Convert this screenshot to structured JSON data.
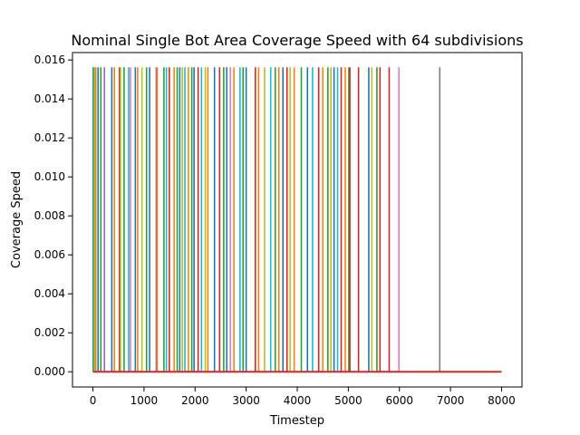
{
  "chart_data": {
    "type": "line",
    "title": "Nominal Single Bot Area Coverage Speed with 64 subdivisions",
    "xlabel": "Timestep",
    "ylabel": "Coverage Speed",
    "xlim": [
      -400,
      8400
    ],
    "ylim": [
      -0.00078,
      0.01638
    ],
    "x_ticks": [
      0,
      1000,
      2000,
      3000,
      4000,
      5000,
      6000,
      7000,
      8000
    ],
    "y_ticks": [
      0.0,
      0.002,
      0.004,
      0.006,
      0.008,
      0.01,
      0.012,
      0.014,
      0.016
    ],
    "x_tick_labels": [
      "0",
      "1000",
      "2000",
      "3000",
      "4000",
      "5000",
      "6000",
      "7000",
      "8000"
    ],
    "y_tick_labels": [
      "0.000",
      "0.002",
      "0.004",
      "0.006",
      "0.008",
      "0.010",
      "0.012",
      "0.014",
      "0.016"
    ],
    "baseline": {
      "from": 0,
      "to": 8000,
      "value": 0,
      "color": "#d62728"
    },
    "spike_height": 0.015625,
    "grid": false,
    "legend": "none",
    "palette": [
      "#1f77b4",
      "#ff7f0e",
      "#2ca02c",
      "#d62728",
      "#9467bd",
      "#8c564b",
      "#e377c2",
      "#7f7f7f",
      "#bcbd22",
      "#17becf"
    ],
    "spikes": [
      5,
      20,
      35,
      55,
      100,
      155,
      225,
      370,
      420,
      520,
      540,
      610,
      700,
      735,
      830,
      875,
      960,
      1050,
      1110,
      1240,
      1260,
      1390,
      1440,
      1495,
      1590,
      1650,
      1700,
      1750,
      1800,
      1870,
      1935,
      1980,
      2060,
      2125,
      2200,
      2250,
      2380,
      2480,
      2560,
      2620,
      2690,
      2760,
      2880,
      2940,
      3000,
      3180,
      3245,
      3360,
      3480,
      3570,
      3640,
      3720,
      3800,
      3860,
      3940,
      4080,
      4200,
      4300,
      4420,
      4500,
      4600,
      4660,
      4720,
      4790,
      4860,
      4940,
      5010,
      5030,
      5200,
      5400,
      5460,
      5560,
      5620,
      5800,
      5990,
      6790
    ],
    "spike_colors": [
      "#2ca02c",
      "#17becf",
      "#bcbd22",
      "#ff7f0e",
      "#1f77b4",
      "#2ca02c",
      "#9467bd",
      "#1f77b4",
      "#ff7f0e",
      "#d62728",
      "#bcbd22",
      "#2ca02c",
      "#17becf",
      "#e377c2",
      "#1f77b4",
      "#ff7f0e",
      "#bcbd22",
      "#2ca02c",
      "#1f77b4",
      "#9467bd",
      "#ff7f0e",
      "#2ca02c",
      "#17becf",
      "#d62728",
      "#ff7f0e",
      "#2ca02c",
      "#1f77b4",
      "#bcbd22",
      "#17becf",
      "#ff7f0e",
      "#2ca02c",
      "#1f77b4",
      "#d62728",
      "#17becf",
      "#bcbd22",
      "#ff7f0e",
      "#1f77b4",
      "#d62728",
      "#2ca02c",
      "#1f77b4",
      "#e377c2",
      "#ff7f0e",
      "#17becf",
      "#2ca02c",
      "#1f77b4",
      "#d62728",
      "#ff7f0e",
      "#bcbd22",
      "#17becf",
      "#2ca02c",
      "#ff7f0e",
      "#1f77b4",
      "#d62728",
      "#bcbd22",
      "#ff7f0e",
      "#2ca02c",
      "#1f77b4",
      "#17becf",
      "#d62728",
      "#ff7f0e",
      "#2ca02c",
      "#bcbd22",
      "#1f77b4",
      "#17becf",
      "#d62728",
      "#ff7f0e",
      "#2ca02c",
      "#d62728",
      "#d62728",
      "#1f77b4",
      "#bcbd22",
      "#2ca02c",
      "#d62728",
      "#d62728",
      "#e377c2",
      "#7f7f7f"
    ]
  }
}
